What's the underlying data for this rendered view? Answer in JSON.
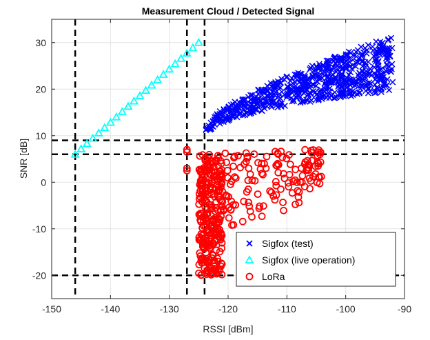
{
  "chart_data": {
    "type": "scatter",
    "title": "Measurement Cloud / Detected Signal",
    "xlabel": "RSSI [dBm]",
    "ylabel": "SNR [dB]",
    "xlim": [
      -150,
      -90
    ],
    "ylim": [
      -25,
      35
    ],
    "xticks": [
      -150,
      -140,
      -130,
      -120,
      -110,
      -100,
      -90
    ],
    "yticks": [
      -20,
      -10,
      0,
      10,
      20,
      30
    ],
    "grid": true,
    "legend_position": "bottom-right",
    "threshold_lines": {
      "vertical": [
        -146,
        -127,
        -124
      ],
      "horizontal": [
        9,
        6,
        -20
      ]
    },
    "series": [
      {
        "name": "Sigfox (test)",
        "marker": "x",
        "color": "#0000ff",
        "description_cloud": {
          "x_range": [
            -124,
            -92
          ],
          "y_range_at_start": [
            10,
            12
          ],
          "y_range_at_end": [
            22,
            33
          ]
        }
      },
      {
        "name": "Sigfox (live operation)",
        "marker": "triangle",
        "color": "#00ffff",
        "points_line": {
          "x_start": -146,
          "y_start": 6,
          "x_end": -125,
          "y_end": 30,
          "count": 22
        }
      },
      {
        "name": "LoRa",
        "marker": "circle",
        "color": "#ff0000",
        "description_cloud": {
          "x_range": [
            -125,
            -104
          ],
          "y_range": [
            -20,
            7
          ]
        }
      }
    ]
  }
}
